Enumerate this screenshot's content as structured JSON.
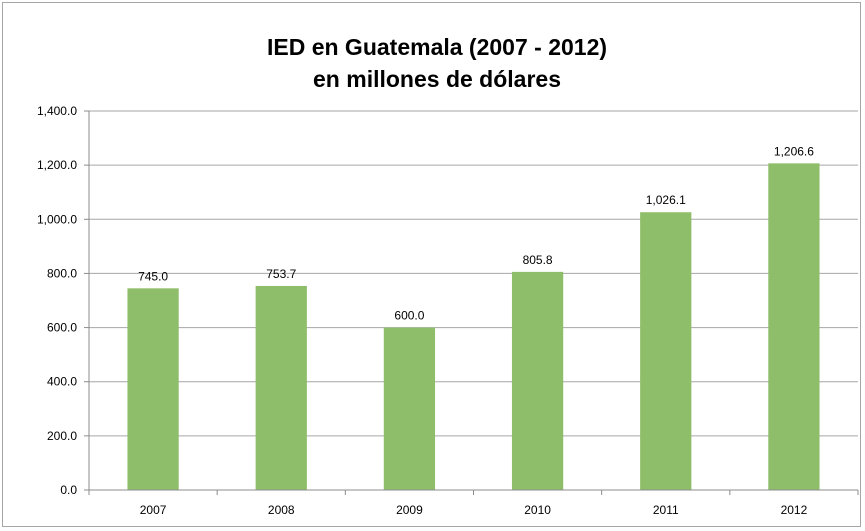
{
  "chart_data": {
    "type": "bar",
    "title": [
      "IED en Guatemala (2007 - 2012)",
      "en millones de dólares"
    ],
    "xlabel": "",
    "ylabel": "",
    "categories": [
      "2007",
      "2008",
      "2009",
      "2010",
      "2011",
      "2012"
    ],
    "values": [
      745.0,
      753.7,
      600.0,
      805.8,
      1026.1,
      1206.6
    ],
    "data_labels": [
      "745.0",
      "753.7",
      "600.0",
      "805.8",
      "1,026.1",
      "1,206.6"
    ],
    "y_ticks": [
      "0.0",
      "200.0",
      "400.0",
      "600.0",
      "800.0",
      "1,000.0",
      "1,200.0",
      "1,400.0"
    ],
    "ylim": [
      0,
      1400
    ],
    "grid": true,
    "legend": "none",
    "colors": {
      "bar": "#8fbe6a",
      "grid": "#a6a6a6",
      "axis": "#8c8c8c"
    }
  }
}
